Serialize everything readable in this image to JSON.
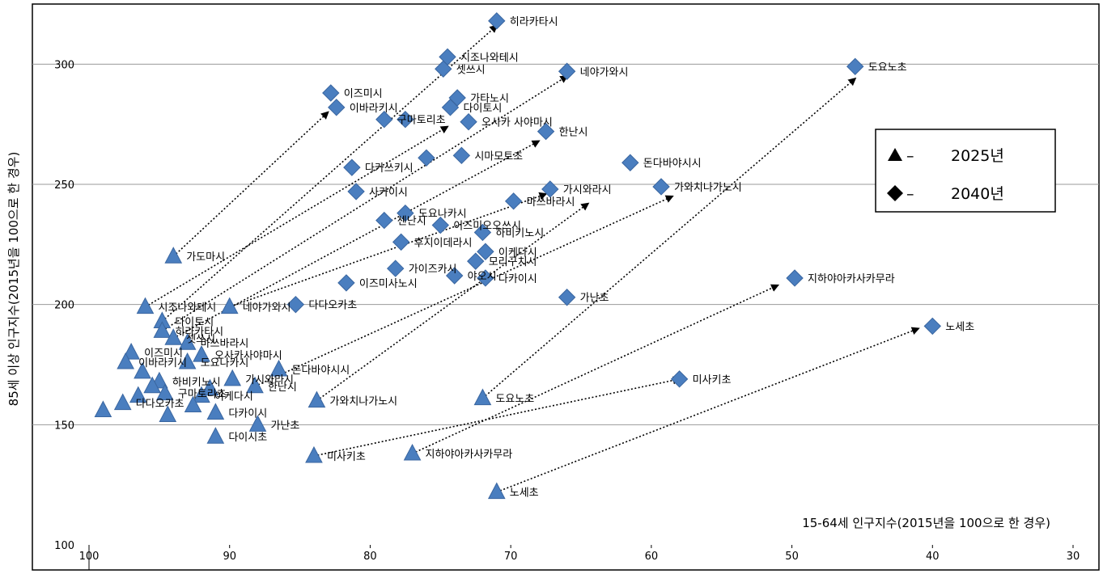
{
  "chart_data": {
    "type": "scatter",
    "xlabel": "15-64세 인구지수(2015년을 100으로 한 경우)",
    "ylabel": "85세 이상 인구지수(2015년을 100으로 한 경우)",
    "xlim": [
      100,
      30
    ],
    "ylim": [
      100,
      325
    ],
    "x_ticks": [
      100,
      90,
      80,
      70,
      60,
      50,
      40,
      30
    ],
    "y_ticks": [
      100,
      150,
      200,
      250,
      300
    ],
    "grid": "horizontal",
    "legend_position": "right",
    "legend": [
      {
        "marker": "triangle",
        "label": "2025년",
        "dash": "–"
      },
      {
        "marker": "diamond",
        "label": "2040년",
        "dash": "–"
      }
    ],
    "colors": {
      "marker": "#4a7ebf",
      "marker_edge": "#3a66a0",
      "grid": "#9a9a9a",
      "arrow": "#000000"
    },
    "series": [
      {
        "name": "2025년",
        "marker": "triangle",
        "points": [
          {
            "label": "가도마시",
            "x": 94.0,
            "y": 220
          },
          {
            "label": "시조나와테시",
            "x": 96.0,
            "y": 199
          },
          {
            "label": "네야가와시",
            "x": 90.0,
            "y": 199
          },
          {
            "label": "다이토시",
            "x": 94.8,
            "y": 193
          },
          {
            "label": "히라카타시",
            "x": 94.8,
            "y": 189
          },
          {
            "label": "셋쓰시",
            "x": 94.0,
            "y": 186
          },
          {
            "label": "이즈미시",
            "x": 97.0,
            "y": 180
          },
          {
            "label": "이바라키시",
            "x": 97.4,
            "y": 176
          },
          {
            "label": "마쓰바라시",
            "x": 93.0,
            "y": 184
          },
          {
            "label": "오사카사야마시",
            "x": 92.0,
            "y": 179
          },
          {
            "label": "도요나카시",
            "x": 93.0,
            "y": 176
          },
          {
            "label": "가시와라시",
            "x": 89.8,
            "y": 169
          },
          {
            "label": "하비키노시",
            "x": 95.0,
            "y": 168
          },
          {
            "label": "한난시",
            "x": 88.2,
            "y": 166
          },
          {
            "label": "돈다바야시시",
            "x": 86.5,
            "y": 173
          },
          {
            "label": "구마토리초",
            "x": 94.6,
            "y": 163
          },
          {
            "label": "이케다시",
            "x": 92.0,
            "y": 162
          },
          {
            "label": "다다오카초",
            "x": 97.6,
            "y": 159
          },
          {
            "label": "가와치나가노시",
            "x": 83.8,
            "y": 160
          },
          {
            "label": "도요노초",
            "x": 72.0,
            "y": 161
          },
          {
            "label": "다카이시",
            "x": 91.0,
            "y": 155
          },
          {
            "label": "다이시초",
            "x": 91.0,
            "y": 145
          },
          {
            "label": "가난초",
            "x": 88.0,
            "y": 150
          },
          {
            "label": "미사키초",
            "x": 84.0,
            "y": 137
          },
          {
            "label": "지하야아카사카무라",
            "x": 77.0,
            "y": 138
          },
          {
            "label": "노세초",
            "x": 71.0,
            "y": 122
          },
          {
            "label": "",
            "x": 99.0,
            "y": 156
          },
          {
            "label": "",
            "x": 94.4,
            "y": 154
          },
          {
            "label": "",
            "x": 96.5,
            "y": 162
          },
          {
            "label": "",
            "x": 96.2,
            "y": 172
          },
          {
            "label": "",
            "x": 95.5,
            "y": 166
          },
          {
            "label": "",
            "x": 92.6,
            "y": 158
          },
          {
            "label": "",
            "x": 91.4,
            "y": 165
          }
        ]
      },
      {
        "name": "2040년",
        "marker": "diamond",
        "points": [
          {
            "label": "히라카타시",
            "x": 71.0,
            "y": 318
          },
          {
            "label": "시조나와테시",
            "x": 74.5,
            "y": 303
          },
          {
            "label": "셋쓰시",
            "x": 74.8,
            "y": 298
          },
          {
            "label": "네야가와시",
            "x": 66.0,
            "y": 297
          },
          {
            "label": "도요노초",
            "x": 45.5,
            "y": 299
          },
          {
            "label": "이즈미시",
            "x": 82.8,
            "y": 288
          },
          {
            "label": "가타노시",
            "x": 73.8,
            "y": 286
          },
          {
            "label": "다이토시",
            "x": 74.3,
            "y": 282
          },
          {
            "label": "이바라키시",
            "x": 82.4,
            "y": 282
          },
          {
            "label": "다카쓰키시",
            "x": 81.3,
            "y": 257
          },
          {
            "label": "구마토리초",
            "x": 79.0,
            "y": 277
          },
          {
            "label": "",
            "x": 77.5,
            "y": 277
          },
          {
            "label": "오사카 사야마시",
            "x": 73.0,
            "y": 276
          },
          {
            "label": "한난시",
            "x": 67.5,
            "y": 272
          },
          {
            "label": "시마모토초",
            "x": 73.5,
            "y": 262
          },
          {
            "label": "",
            "x": 76.0,
            "y": 261
          },
          {
            "label": "돈다바야시시",
            "x": 61.5,
            "y": 259
          },
          {
            "label": "가와치나가노시",
            "x": 59.3,
            "y": 249
          },
          {
            "label": "가시와라시",
            "x": 67.2,
            "y": 248
          },
          {
            "label": "사카이시",
            "x": 81.0,
            "y": 247
          },
          {
            "label": "마쓰바라시",
            "x": 69.8,
            "y": 243
          },
          {
            "label": "도요나카시",
            "x": 77.5,
            "y": 238
          },
          {
            "label": "센난시",
            "x": 79.0,
            "y": 235
          },
          {
            "label": "이즈미오오쓰시",
            "x": 75.0,
            "y": 233
          },
          {
            "label": "하비키노시",
            "x": 72.0,
            "y": 230
          },
          {
            "label": "후지이데라시",
            "x": 77.8,
            "y": 226
          },
          {
            "label": "이케다시",
            "x": 71.8,
            "y": 222
          },
          {
            "label": "모리구치시",
            "x": 72.5,
            "y": 218
          },
          {
            "label": "가이즈카시",
            "x": 78.2,
            "y": 215
          },
          {
            "label": "야오시",
            "x": 74.0,
            "y": 212
          },
          {
            "label": "다카이시",
            "x": 71.8,
            "y": 211
          },
          {
            "label": "이즈미사노시",
            "x": 81.7,
            "y": 209
          },
          {
            "label": "다다오카초",
            "x": 85.3,
            "y": 200
          },
          {
            "label": "가난초",
            "x": 66.0,
            "y": 203
          },
          {
            "label": "지하야아카사카무라",
            "x": 49.8,
            "y": 211
          },
          {
            "label": "노세초",
            "x": 40.0,
            "y": 191
          },
          {
            "label": "미사키초",
            "x": 58.0,
            "y": 169
          }
        ]
      }
    ],
    "arrows": [
      {
        "from": [
          94.0,
          220
        ],
        "to": [
          83.0,
          280
        ]
      },
      {
        "from": [
          96.0,
          199
        ],
        "to": [
          74.5,
          274
        ]
      },
      {
        "from": [
          94.8,
          193
        ],
        "to": [
          71.0,
          316
        ]
      },
      {
        "from": [
          94.8,
          189
        ],
        "to": [
          66.0,
          295
        ]
      },
      {
        "from": [
          94.0,
          186
        ],
        "to": [
          68.0,
          268
        ]
      },
      {
        "from": [
          90.0,
          199
        ],
        "to": [
          67.5,
          246
        ]
      },
      {
        "from": [
          88.2,
          166
        ],
        "to": [
          58.5,
          245
        ]
      },
      {
        "from": [
          83.8,
          160
        ],
        "to": [
          64.5,
          242
        ]
      },
      {
        "from": [
          72.0,
          161
        ],
        "to": [
          45.5,
          294
        ]
      },
      {
        "from": [
          84.0,
          137
        ],
        "to": [
          58.0,
          169
        ]
      },
      {
        "from": [
          77.0,
          138
        ],
        "to": [
          51.0,
          208
        ]
      },
      {
        "from": [
          71.0,
          122
        ],
        "to": [
          41.0,
          190
        ]
      }
    ]
  }
}
